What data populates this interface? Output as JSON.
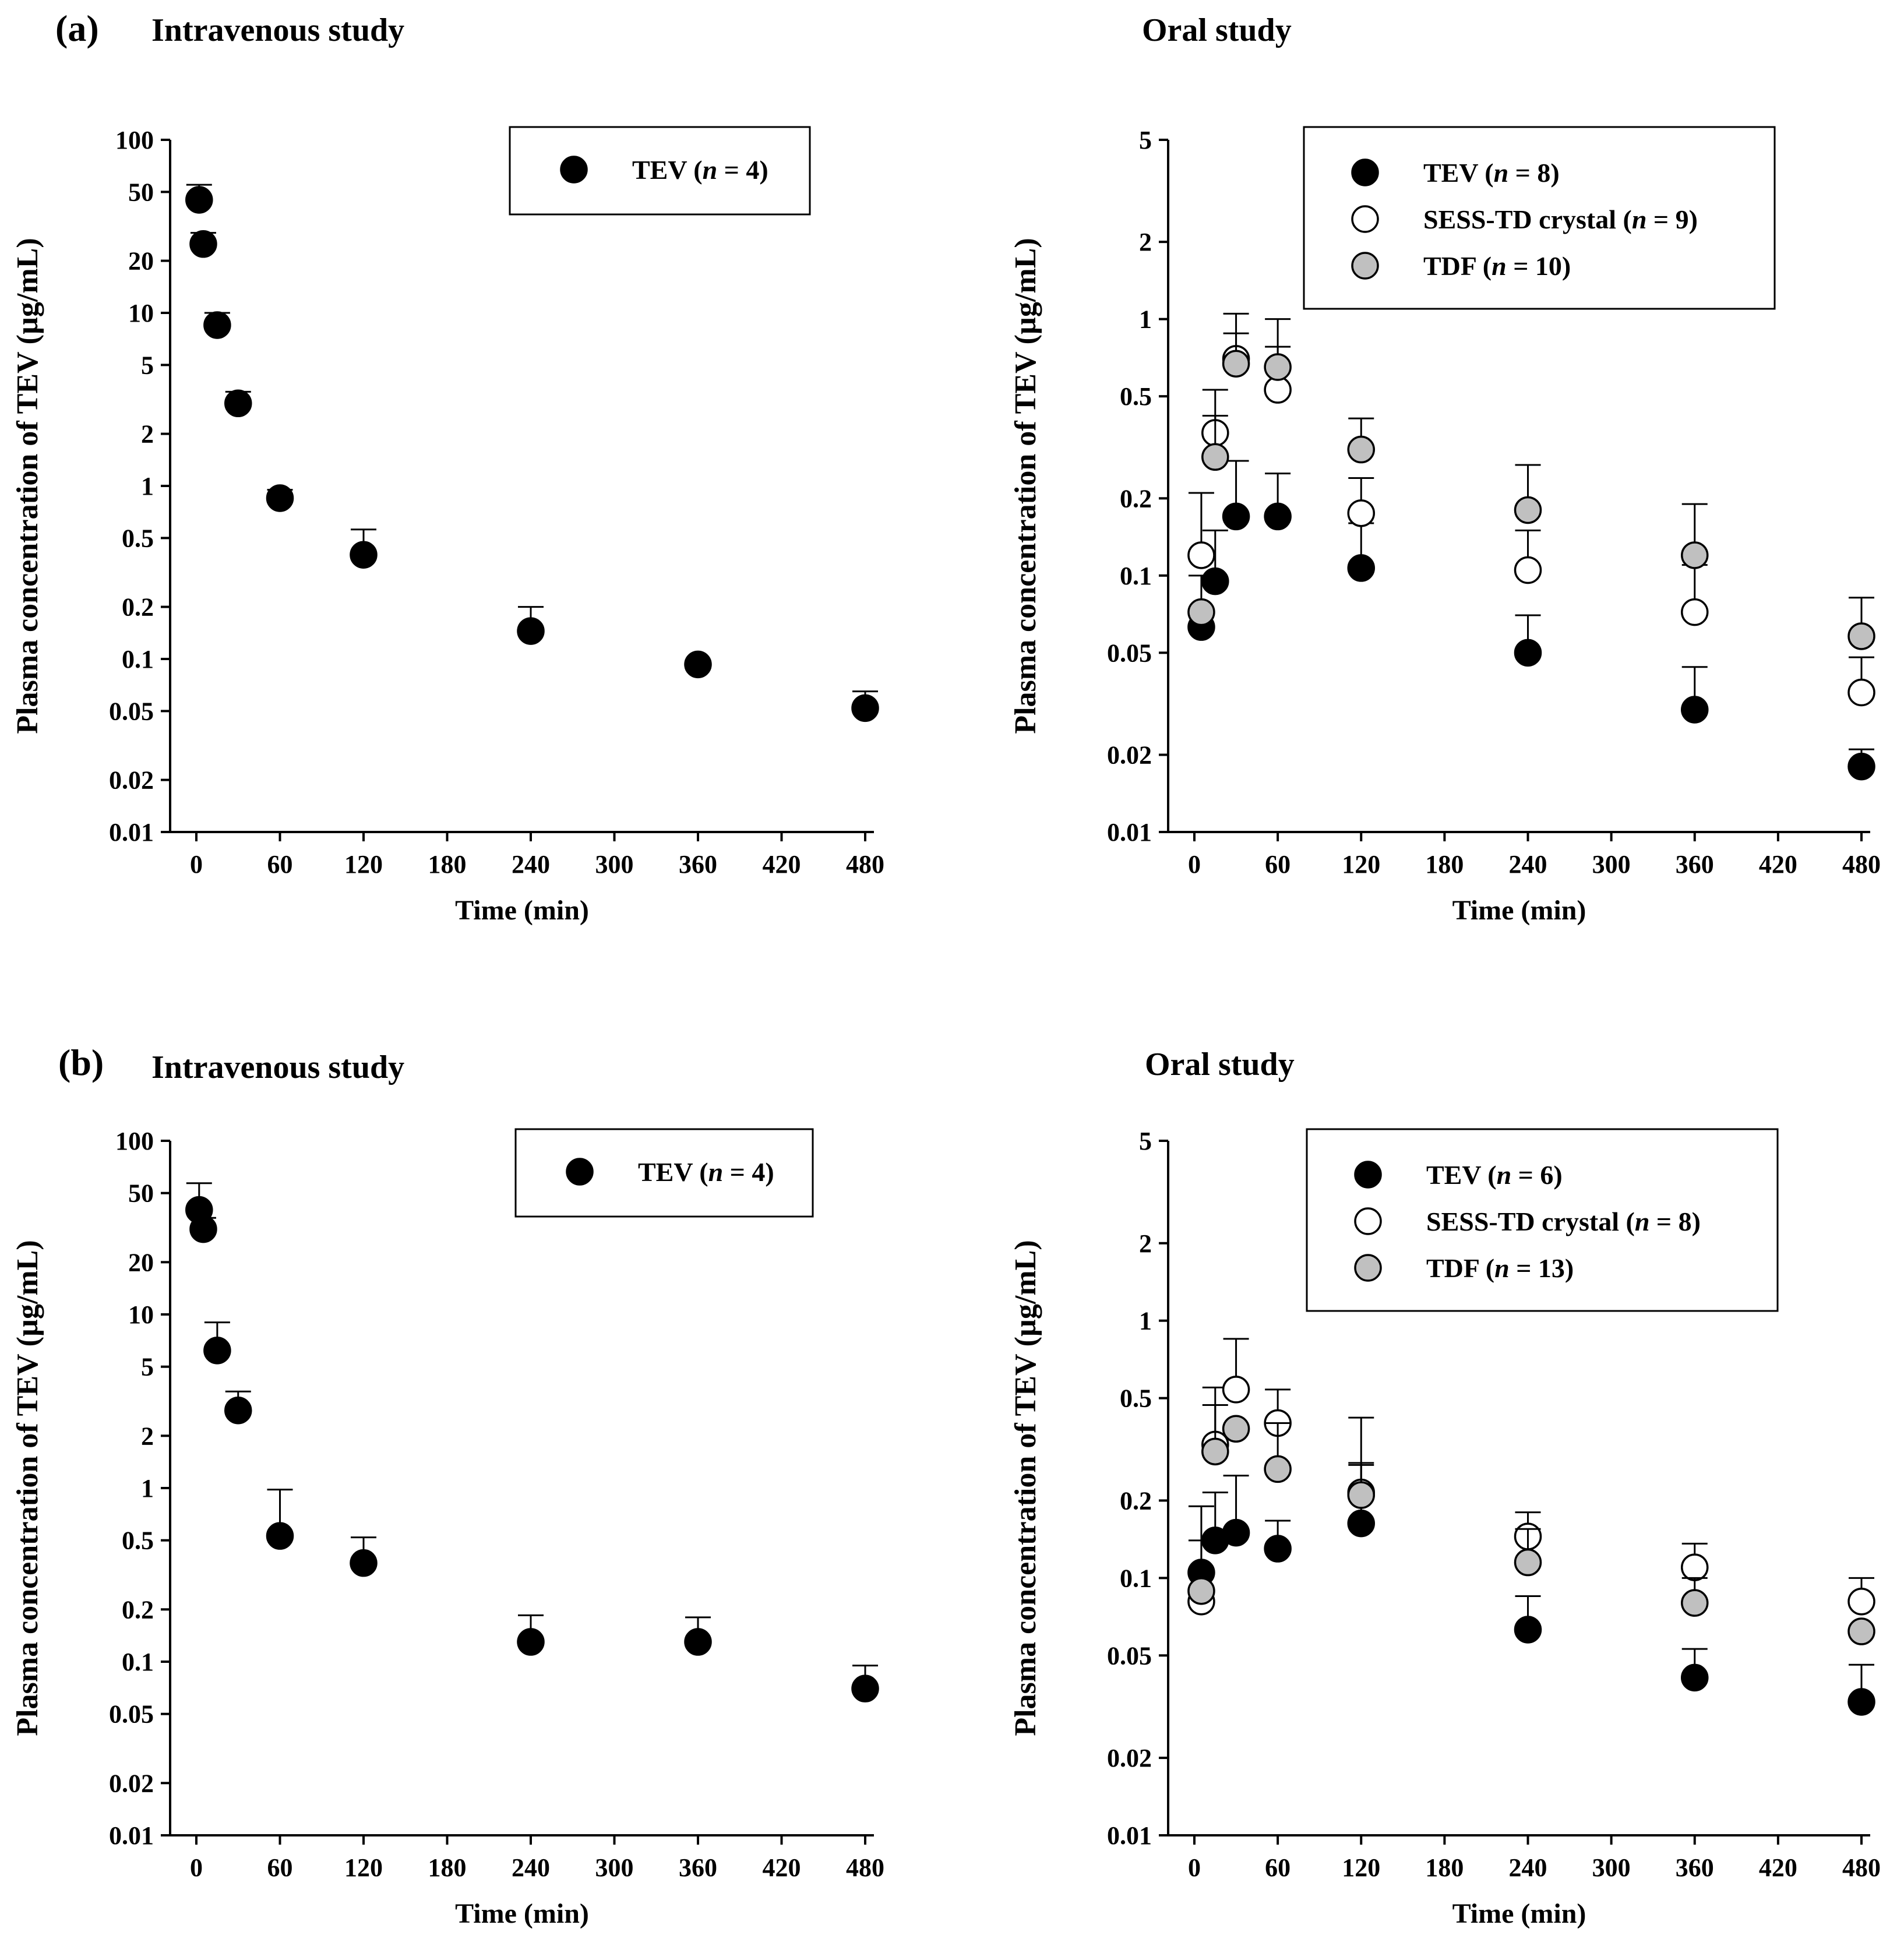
{
  "figure": {
    "panel_a_label": "(a)",
    "panel_b_label": "(b)"
  },
  "chart_data": [
    {
      "id": "a-iv",
      "type": "scatter",
      "title": "Intravenous study",
      "xlabel": "Time (min)",
      "ylabel": "Plasma concentration of TEV (µg/mL)",
      "xscale": "linear",
      "yscale": "log",
      "xlim": [
        0,
        480
      ],
      "ylim": [
        0.01,
        100
      ],
      "xticks": [
        0,
        60,
        120,
        180,
        240,
        300,
        360,
        420,
        480
      ],
      "xtick_labels": [
        "0",
        "60",
        "120",
        "180",
        "240",
        "300",
        "360",
        "420",
        "480"
      ],
      "yticks": [
        0.01,
        0.02,
        0.05,
        0.1,
        0.2,
        0.5,
        1,
        2,
        5,
        10,
        20,
        50,
        100
      ],
      "ytick_labels": [
        "0.01",
        "0.02",
        "0.05",
        "0.1",
        "0.2",
        "0.5",
        "1",
        "2",
        "5",
        "10",
        "20",
        "50",
        "100"
      ],
      "legend_position": "top-right",
      "series": [
        {
          "name": "TEV",
          "n": "4",
          "marker": "filled-black",
          "x": [
            2,
            5,
            15,
            30,
            60,
            120,
            240,
            360,
            480
          ],
          "y": [
            45,
            25,
            8.5,
            3,
            0.85,
            0.4,
            0.145,
            0.093,
            0.052
          ],
          "err_upper": [
            55,
            29,
            10,
            3.5,
            0.95,
            0.56,
            0.2,
            null,
            0.065
          ]
        }
      ]
    },
    {
      "id": "a-oral",
      "type": "scatter",
      "title": "Oral study",
      "xlabel": "Time (min)",
      "ylabel": "Plasma concentration of TEV (µg/mL)",
      "xscale": "linear",
      "yscale": "log",
      "xlim": [
        0,
        480
      ],
      "ylim": [
        0.01,
        5
      ],
      "xticks": [
        0,
        60,
        120,
        180,
        240,
        300,
        360,
        420,
        480
      ],
      "xtick_labels": [
        "0",
        "60",
        "120",
        "180",
        "240",
        "300",
        "360",
        "420",
        "480"
      ],
      "yticks": [
        0.01,
        0.02,
        0.05,
        0.1,
        0.2,
        0.5,
        1,
        2,
        5
      ],
      "ytick_labels": [
        "0.01",
        "0.02",
        "0.05",
        "0.1",
        "0.2",
        "0.5",
        "1",
        "2",
        "5"
      ],
      "legend_position": "top-right",
      "series": [
        {
          "name": "TEV",
          "n": "8",
          "marker": "filled-black",
          "x": [
            5,
            15,
            30,
            60,
            120,
            240,
            360,
            480
          ],
          "y": [
            0.063,
            0.095,
            0.17,
            0.17,
            0.107,
            0.05,
            0.03,
            0.018
          ],
          "err_upper": [
            0.1,
            0.15,
            0.28,
            0.25,
            0.16,
            0.07,
            0.044,
            0.021
          ]
        },
        {
          "name": "SESS-TD crystal",
          "n": "9",
          "marker": "open",
          "x": [
            5,
            15,
            30,
            60,
            120,
            240,
            360,
            480
          ],
          "y": [
            0.12,
            0.36,
            0.7,
            0.53,
            0.175,
            0.105,
            0.072,
            0.035
          ],
          "err_upper": [
            0.21,
            0.53,
            1.05,
            0.78,
            0.24,
            0.15,
            0.11,
            0.048
          ]
        },
        {
          "name": "TDF",
          "n": "10",
          "marker": "filled-gray",
          "x": [
            5,
            15,
            30,
            60,
            120,
            240,
            360,
            480
          ],
          "y": [
            0.072,
            0.29,
            0.67,
            0.65,
            0.31,
            0.18,
            0.12,
            0.058
          ],
          "err_upper": [
            null,
            0.42,
            0.88,
            1.0,
            0.41,
            0.27,
            0.19,
            0.082
          ]
        }
      ]
    },
    {
      "id": "b-iv",
      "type": "scatter",
      "title": "Intravenous study",
      "xlabel": "Time (min)",
      "ylabel": "Plasma concentration of TEV (µg/mL)",
      "xscale": "linear",
      "yscale": "log",
      "xlim": [
        0,
        480
      ],
      "ylim": [
        0.01,
        100
      ],
      "xticks": [
        0,
        60,
        120,
        180,
        240,
        300,
        360,
        420,
        480
      ],
      "xtick_labels": [
        "0",
        "60",
        "120",
        "180",
        "240",
        "300",
        "360",
        "420",
        "480"
      ],
      "yticks": [
        0.01,
        0.02,
        0.05,
        0.1,
        0.2,
        0.5,
        1,
        2,
        5,
        10,
        20,
        50,
        100
      ],
      "ytick_labels": [
        "0.01",
        "0.02",
        "0.05",
        "0.1",
        "0.2",
        "0.5",
        "1",
        "2",
        "5",
        "10",
        "20",
        "50",
        "100"
      ],
      "legend_position": "top-right",
      "series": [
        {
          "name": "TEV",
          "n": "4",
          "marker": "filled-black",
          "x": [
            2,
            5,
            15,
            30,
            60,
            120,
            240,
            360,
            480
          ],
          "y": [
            40,
            31,
            6.2,
            2.8,
            0.53,
            0.37,
            0.13,
            0.13,
            0.07
          ],
          "err_upper": [
            57,
            36,
            9,
            3.6,
            0.98,
            0.52,
            0.185,
            0.18,
            0.095
          ]
        }
      ]
    },
    {
      "id": "b-oral",
      "type": "scatter",
      "title": "Oral study",
      "xlabel": "Time (min)",
      "ylabel": "Plasma concentration of TEV (µg/mL)",
      "xscale": "linear",
      "yscale": "log",
      "xlim": [
        0,
        480
      ],
      "ylim": [
        0.01,
        5
      ],
      "xticks": [
        0,
        60,
        120,
        180,
        240,
        300,
        360,
        420,
        480
      ],
      "xtick_labels": [
        "0",
        "60",
        "120",
        "180",
        "240",
        "300",
        "360",
        "420",
        "480"
      ],
      "yticks": [
        0.01,
        0.02,
        0.05,
        0.1,
        0.2,
        0.5,
        1,
        2,
        5
      ],
      "ytick_labels": [
        "0.01",
        "0.02",
        "0.05",
        "0.1",
        "0.2",
        "0.5",
        "1",
        "2",
        "5"
      ],
      "legend_position": "top-right",
      "series": [
        {
          "name": "TEV",
          "n": "6",
          "marker": "filled-black",
          "x": [
            5,
            15,
            30,
            60,
            120,
            240,
            360,
            480
          ],
          "y": [
            0.105,
            0.14,
            0.15,
            0.13,
            0.163,
            0.063,
            0.041,
            0.033
          ],
          "err_upper": [
            0.14,
            0.215,
            0.25,
            0.167,
            0.275,
            0.085,
            0.053,
            0.046
          ]
        },
        {
          "name": "SESS-TD crystal",
          "n": "8",
          "marker": "open",
          "x": [
            5,
            15,
            30,
            60,
            120,
            240,
            360,
            480
          ],
          "y": [
            0.081,
            0.33,
            0.54,
            0.4,
            0.215,
            0.145,
            0.11,
            0.081
          ],
          "err_upper": [
            0.19,
            0.55,
            0.85,
            0.54,
            0.42,
            0.18,
            0.136,
            0.1
          ]
        },
        {
          "name": "TDF",
          "n": "13",
          "marker": "filled-gray",
          "x": [
            5,
            15,
            30,
            60,
            120,
            240,
            360,
            480
          ],
          "y": [
            0.089,
            0.31,
            0.38,
            0.265,
            0.21,
            0.115,
            0.08,
            0.062
          ],
          "err_upper": [
            null,
            0.47,
            null,
            0.4,
            0.28,
            0.155,
            0.1,
            null
          ]
        }
      ]
    }
  ],
  "marker_colors": {
    "filled-black": "#000000",
    "open": "#ffffff",
    "filled-gray": "#c0c0c0"
  }
}
